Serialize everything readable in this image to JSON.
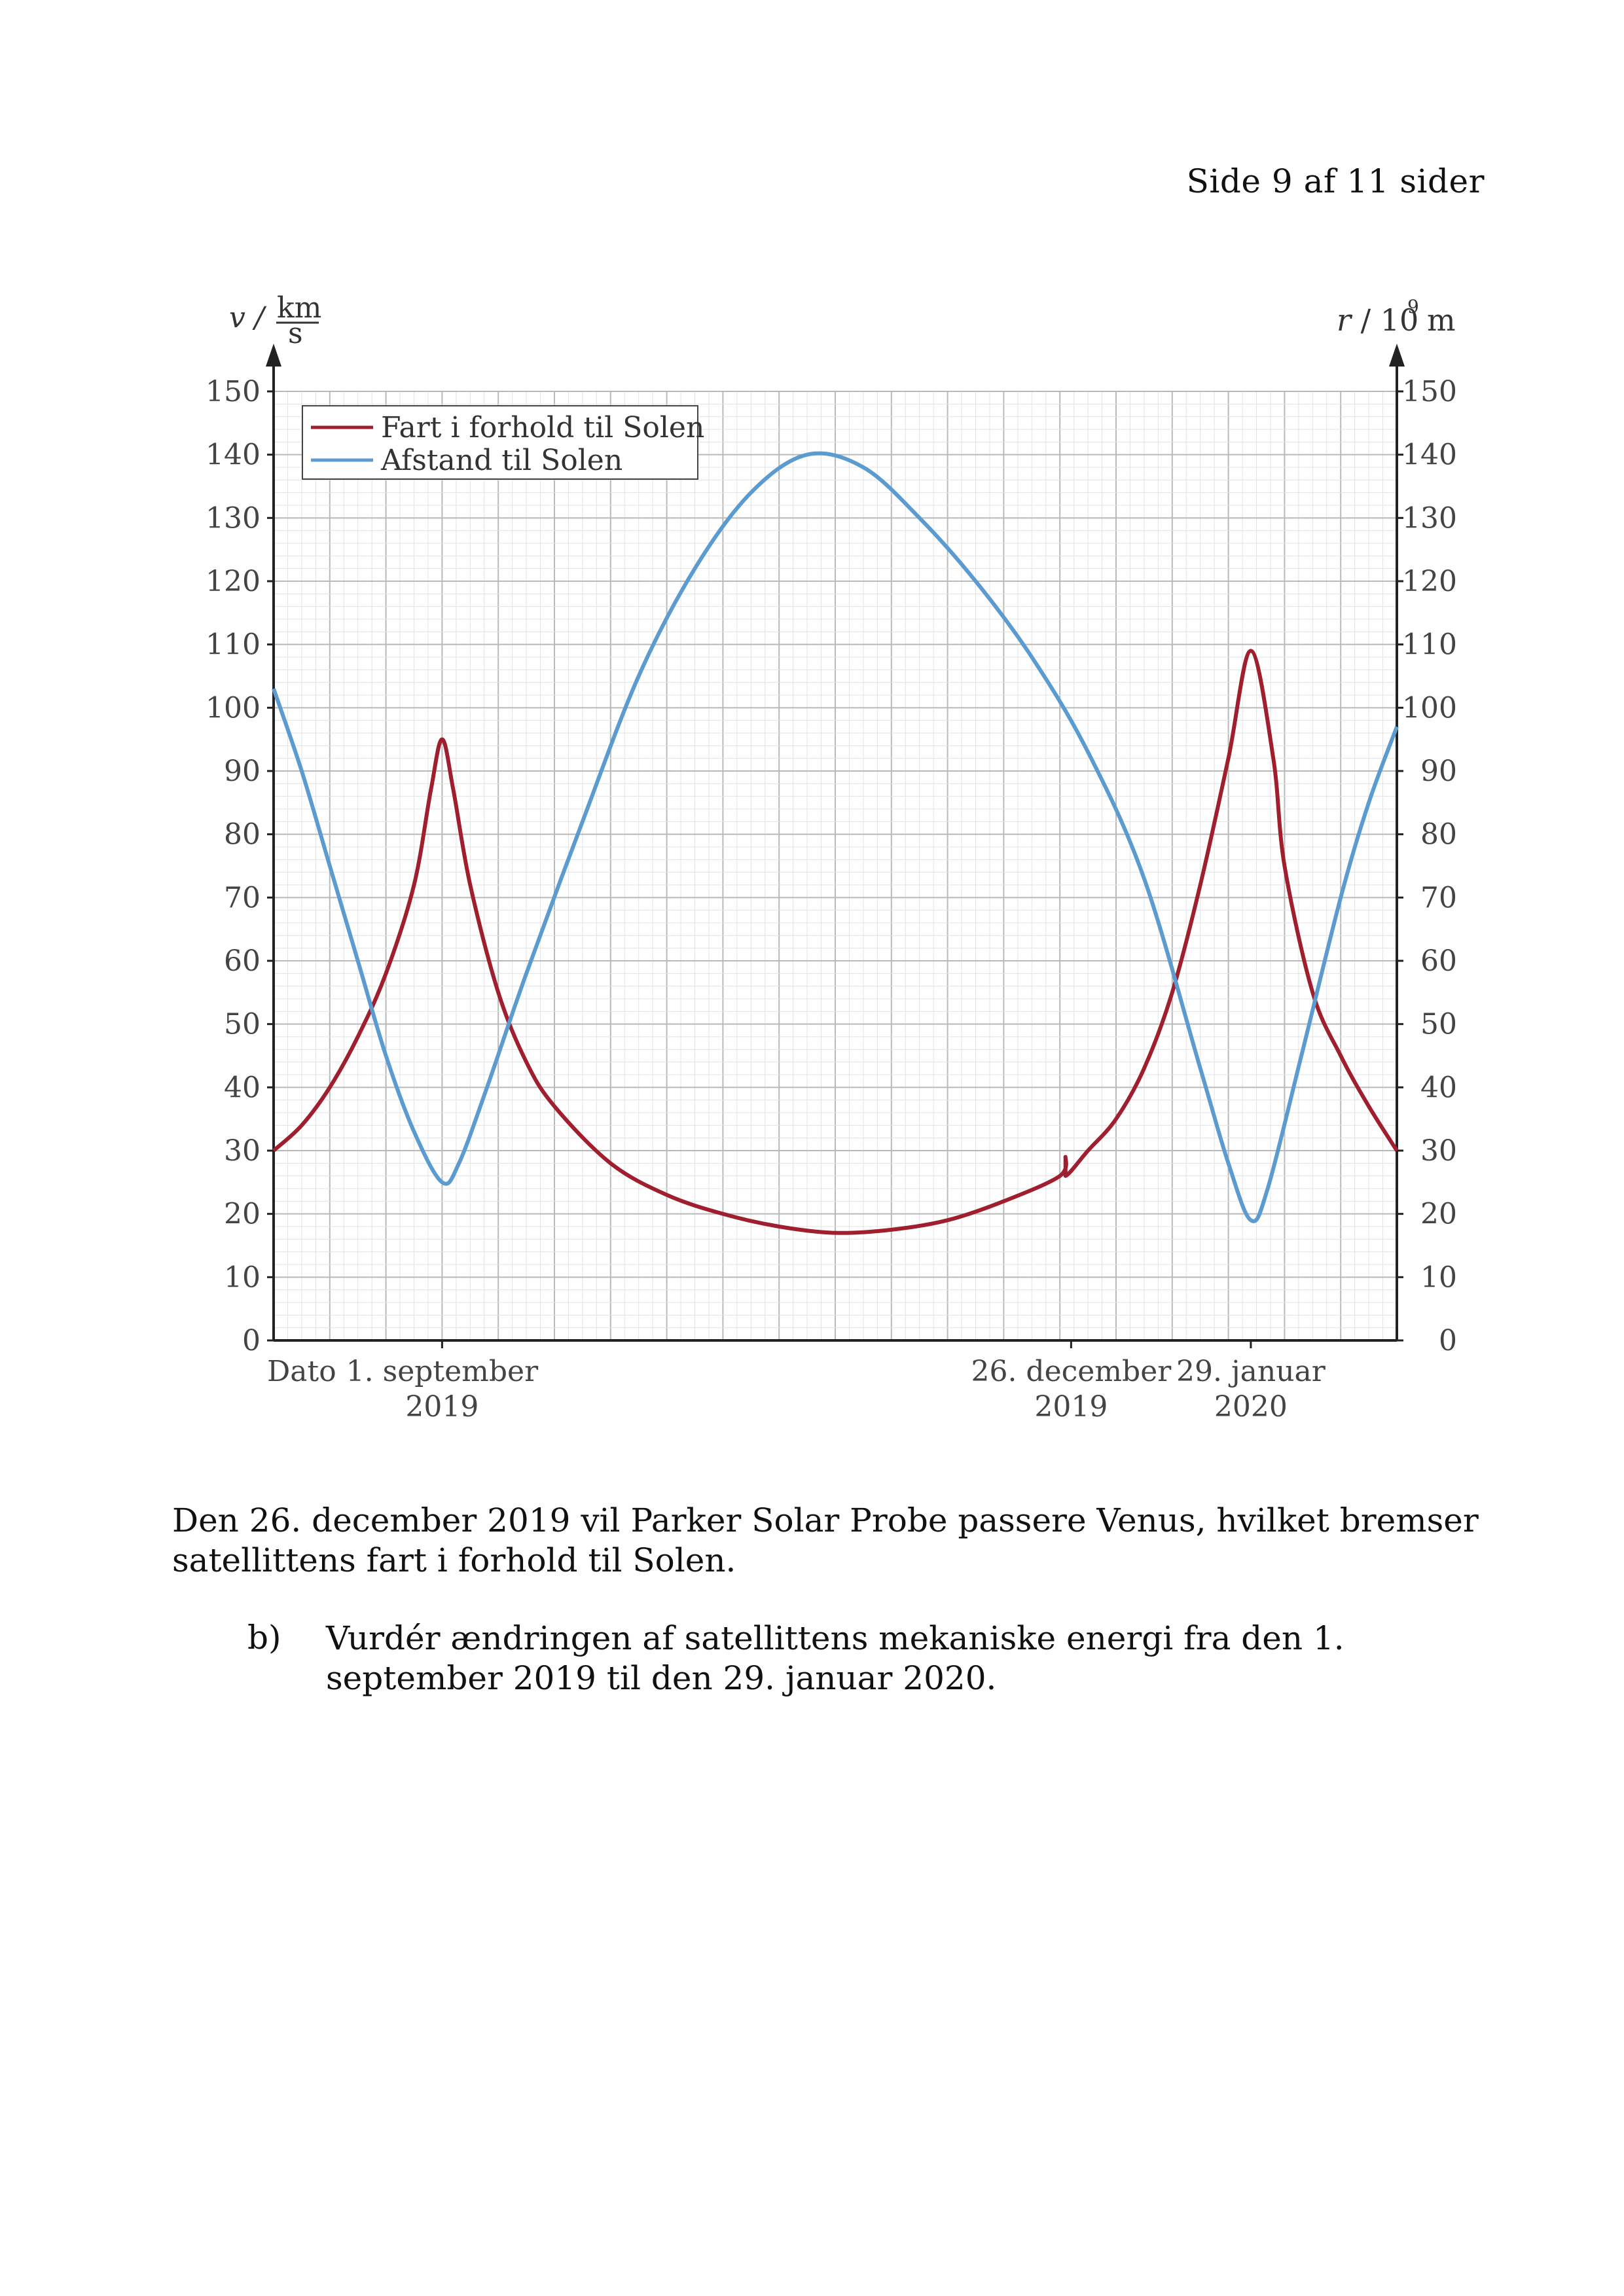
{
  "header": {
    "page_label": "Side 9 af 11 sider"
  },
  "chart_data": {
    "type": "line",
    "legend": [
      "Fart i forhold til Solen",
      "Afstand til Solen"
    ],
    "legend_position": "top-left",
    "grid": true,
    "y_left": {
      "label_var": "v /",
      "unit_num": "km",
      "unit_den": "s",
      "range": [
        0,
        150
      ],
      "ticks": [
        0,
        10,
        20,
        30,
        40,
        50,
        60,
        70,
        80,
        90,
        100,
        110,
        120,
        130,
        140,
        150
      ]
    },
    "y_right": {
      "label": "r / 10",
      "exp": "9",
      "unit": "m",
      "range": [
        0,
        150
      ],
      "ticks": [
        0,
        10,
        20,
        30,
        40,
        50,
        60,
        70,
        80,
        90,
        100,
        110,
        120,
        130,
        140,
        150
      ]
    },
    "x_labels": [
      {
        "line1": "Dato",
        "line2": ""
      },
      {
        "line1": "1. september",
        "line2": "2019"
      },
      {
        "line1": "26. december",
        "line2": "2019"
      },
      {
        "line1": "29. januar",
        "line2": "2020"
      }
    ],
    "x_label_days": [
      0,
      3,
      14.2,
      17.4
    ],
    "x_range_days": [
      0,
      20
    ],
    "series": [
      {
        "name": "Fart i forhold til Solen",
        "color": "#a01f2e",
        "points": [
          [
            0,
            30
          ],
          [
            0.5,
            34
          ],
          [
            1,
            40
          ],
          [
            1.5,
            48
          ],
          [
            2,
            58
          ],
          [
            2.5,
            72
          ],
          [
            2.8,
            87
          ],
          [
            3,
            95
          ],
          [
            3.2,
            87
          ],
          [
            3.5,
            72
          ],
          [
            4,
            55
          ],
          [
            4.5,
            44
          ],
          [
            5,
            37
          ],
          [
            6,
            28
          ],
          [
            7,
            23
          ],
          [
            8,
            20
          ],
          [
            9,
            18
          ],
          [
            10,
            17
          ],
          [
            11,
            17.5
          ],
          [
            12,
            19
          ],
          [
            13,
            22
          ],
          [
            14,
            26
          ],
          [
            14.1,
            29
          ],
          [
            14.1,
            26
          ],
          [
            14.5,
            30
          ],
          [
            15,
            35
          ],
          [
            15.5,
            43
          ],
          [
            16,
            55
          ],
          [
            16.5,
            72
          ],
          [
            17,
            92
          ],
          [
            17.4,
            109
          ],
          [
            17.8,
            92
          ],
          [
            18,
            75
          ],
          [
            18.5,
            55
          ],
          [
            19,
            45
          ],
          [
            19.5,
            37
          ],
          [
            20,
            30
          ]
        ]
      },
      {
        "name": "Afstand til Solen",
        "color": "#5b9bd0",
        "points": [
          [
            0,
            103
          ],
          [
            0.5,
            90
          ],
          [
            1,
            75
          ],
          [
            1.5,
            60
          ],
          [
            2,
            45
          ],
          [
            2.5,
            33
          ],
          [
            3,
            25
          ],
          [
            3.3,
            28
          ],
          [
            3.8,
            40
          ],
          [
            4.5,
            58
          ],
          [
            5.5,
            82
          ],
          [
            6.5,
            105
          ],
          [
            7.5,
            122
          ],
          [
            8.5,
            134
          ],
          [
            9.5,
            140
          ],
          [
            10.5,
            138
          ],
          [
            11.5,
            130
          ],
          [
            12.5,
            120
          ],
          [
            13.5,
            108
          ],
          [
            14.5,
            93
          ],
          [
            15.5,
            73
          ],
          [
            16.5,
            43
          ],
          [
            17,
            28
          ],
          [
            17.4,
            19
          ],
          [
            17.7,
            24
          ],
          [
            18.3,
            45
          ],
          [
            19,
            70
          ],
          [
            19.5,
            85
          ],
          [
            20,
            97
          ]
        ]
      }
    ]
  },
  "paragraph1": "Den 26. december 2019 vil Parker Solar Probe passere Venus, hvilket bremser satellittens fart i forhold til Solen.",
  "question_b": {
    "label": "b)",
    "text": "Vurdér ændringen af satellittens mekaniske energi fra den 1. september 2019 til den 29. januar 2020."
  }
}
